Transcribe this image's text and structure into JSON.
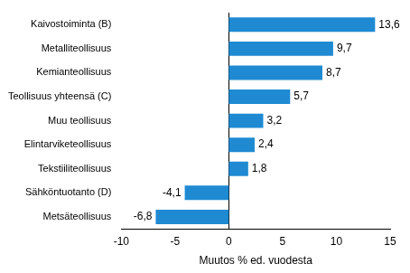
{
  "chart_data": {
    "type": "bar",
    "orientation": "horizontal",
    "categories": [
      "Kaivostoiminta (B)",
      "Metalliteollisuus",
      "Kemianteollisuus",
      "Teollisuus yhteensä (C)",
      "Muu teollisuus",
      "Elintarviketeollisuus",
      "Tekstiiliteollisuus",
      "Sähköntuotanto (D)",
      "Metsäteollisuus"
    ],
    "values": [
      13.6,
      9.7,
      8.7,
      5.7,
      3.2,
      2.4,
      1.8,
      -4.1,
      -6.8
    ],
    "value_labels": [
      "13,6",
      "9,7",
      "8,7",
      "5,7",
      "3,2",
      "2,4",
      "1,8",
      "-4,1",
      "-6,8"
    ],
    "data_labels": true,
    "color": "#1f8ad2",
    "x_label": "Muutos % ed. vuodesta",
    "xlim": [
      -10,
      15
    ],
    "xticks": [
      -10,
      -5,
      0,
      5,
      10,
      15
    ],
    "grid": false
  }
}
